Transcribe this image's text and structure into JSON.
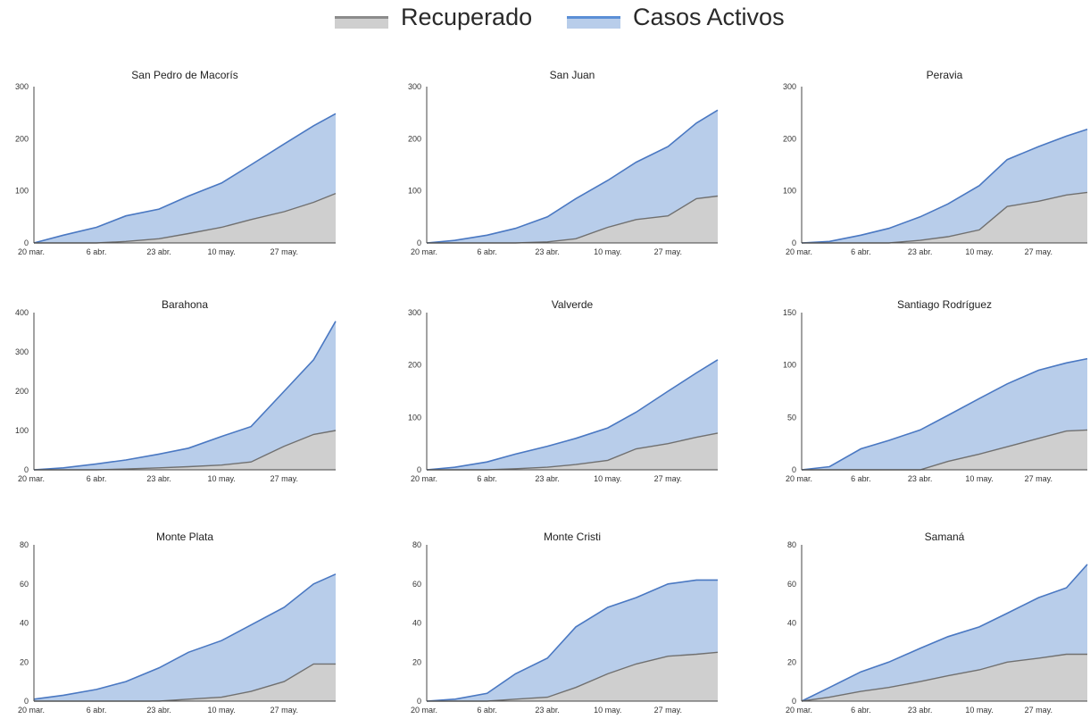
{
  "legend": [
    {
      "label": "Recuperado",
      "color": "#a9a9a9",
      "fill": "#cfcfcf"
    },
    {
      "label": "Casos Activos",
      "color": "#5b8fd6",
      "fill": "#b8cdea"
    }
  ],
  "x_ticks": [
    "20 mar.",
    "6 abr.",
    "23 abr.",
    "10 may.",
    "27 may."
  ],
  "x_tick_pos": [
    0,
    17,
    34,
    51,
    68
  ],
  "x_max": 82,
  "colors": {
    "recovered_fill": "#cfcfcf",
    "recovered_line": "#707070",
    "active_fill": "#b8cdea",
    "active_line": "#4a78c2",
    "axis": "#444444"
  },
  "chart_data": [
    {
      "type": "area",
      "title": "San Pedro de Macorís",
      "ylim": [
        0,
        300
      ],
      "yticks": [
        0,
        100,
        200,
        300
      ],
      "x": [
        0,
        8,
        17,
        25,
        34,
        42,
        51,
        59,
        68,
        76,
        82
      ],
      "series": [
        {
          "name": "Recuperado",
          "values": [
            0,
            0,
            0,
            3,
            8,
            18,
            30,
            45,
            60,
            78,
            95
          ]
        },
        {
          "name": "Casos Activos",
          "values": [
            0,
            15,
            30,
            52,
            65,
            90,
            115,
            150,
            190,
            225,
            248
          ]
        }
      ]
    },
    {
      "type": "area",
      "title": "San Juan",
      "ylim": [
        0,
        300
      ],
      "yticks": [
        0,
        100,
        200,
        300
      ],
      "x": [
        0,
        8,
        17,
        25,
        34,
        42,
        51,
        59,
        68,
        76,
        82
      ],
      "series": [
        {
          "name": "Recuperado",
          "values": [
            0,
            0,
            0,
            0,
            2,
            8,
            30,
            45,
            52,
            85,
            90
          ]
        },
        {
          "name": "Casos Activos",
          "values": [
            0,
            5,
            15,
            28,
            50,
            85,
            120,
            155,
            185,
            230,
            255
          ]
        }
      ]
    },
    {
      "type": "area",
      "title": "Peravia",
      "ylim": [
        0,
        300
      ],
      "yticks": [
        0,
        100,
        200,
        300
      ],
      "x": [
        0,
        8,
        17,
        25,
        34,
        42,
        51,
        59,
        68,
        76,
        82
      ],
      "series": [
        {
          "name": "Recuperado",
          "values": [
            0,
            0,
            0,
            0,
            5,
            12,
            25,
            70,
            80,
            92,
            97
          ]
        },
        {
          "name": "Casos Activos",
          "values": [
            0,
            3,
            15,
            28,
            50,
            75,
            110,
            160,
            185,
            205,
            218
          ]
        }
      ]
    },
    {
      "type": "area",
      "title": "Barahona",
      "ylim": [
        0,
        400
      ],
      "yticks": [
        0,
        100,
        200,
        300,
        400
      ],
      "x": [
        0,
        8,
        17,
        25,
        34,
        42,
        51,
        59,
        68,
        76,
        82
      ],
      "series": [
        {
          "name": "Recuperado",
          "values": [
            0,
            0,
            0,
            2,
            5,
            8,
            12,
            20,
            60,
            90,
            100
          ]
        },
        {
          "name": "Casos Activos",
          "values": [
            0,
            5,
            15,
            25,
            40,
            55,
            85,
            110,
            200,
            280,
            378
          ]
        }
      ]
    },
    {
      "type": "area",
      "title": "Valverde",
      "ylim": [
        0,
        300
      ],
      "yticks": [
        0,
        100,
        200,
        300
      ],
      "x": [
        0,
        8,
        17,
        25,
        34,
        42,
        51,
        59,
        68,
        76,
        82
      ],
      "series": [
        {
          "name": "Recuperado",
          "values": [
            0,
            0,
            0,
            2,
            5,
            10,
            18,
            40,
            50,
            62,
            70
          ]
        },
        {
          "name": "Casos Activos",
          "values": [
            0,
            5,
            15,
            30,
            45,
            60,
            80,
            110,
            150,
            185,
            210
          ]
        }
      ]
    },
    {
      "type": "area",
      "title": "Santiago Rodríguez",
      "ylim": [
        0,
        150
      ],
      "yticks": [
        0,
        50,
        100,
        150
      ],
      "x": [
        0,
        8,
        17,
        25,
        34,
        42,
        51,
        59,
        68,
        76,
        82
      ],
      "series": [
        {
          "name": "Recuperado",
          "values": [
            0,
            0,
            0,
            0,
            0,
            8,
            15,
            22,
            30,
            37,
            38
          ]
        },
        {
          "name": "Casos Activos",
          "values": [
            0,
            3,
            20,
            28,
            38,
            52,
            68,
            82,
            95,
            102,
            106
          ]
        }
      ]
    },
    {
      "type": "area",
      "title": "Monte Plata",
      "ylim": [
        0,
        80
      ],
      "yticks": [
        0,
        20,
        40,
        60,
        80
      ],
      "x": [
        0,
        8,
        17,
        25,
        34,
        42,
        51,
        59,
        68,
        76,
        82
      ],
      "series": [
        {
          "name": "Recuperado",
          "values": [
            0,
            0,
            0,
            0,
            0,
            1,
            2,
            5,
            10,
            19,
            19
          ]
        },
        {
          "name": "Casos Activos",
          "values": [
            1,
            3,
            6,
            10,
            17,
            25,
            31,
            39,
            48,
            60,
            65
          ]
        }
      ]
    },
    {
      "type": "area",
      "title": "Monte Cristi",
      "ylim": [
        0,
        80
      ],
      "yticks": [
        0,
        20,
        40,
        60,
        80
      ],
      "x": [
        0,
        8,
        17,
        25,
        34,
        42,
        51,
        59,
        68,
        76,
        82
      ],
      "series": [
        {
          "name": "Recuperado",
          "values": [
            0,
            0,
            0,
            1,
            2,
            7,
            14,
            19,
            23,
            24,
            25
          ]
        },
        {
          "name": "Casos Activos",
          "values": [
            0,
            1,
            4,
            14,
            22,
            38,
            48,
            53,
            60,
            62,
            62
          ]
        }
      ]
    },
    {
      "type": "area",
      "title": "Samaná",
      "ylim": [
        0,
        80
      ],
      "yticks": [
        0,
        20,
        40,
        60,
        80
      ],
      "x": [
        0,
        8,
        17,
        25,
        34,
        42,
        51,
        59,
        68,
        76,
        82
      ],
      "series": [
        {
          "name": "Recuperado",
          "values": [
            0,
            2,
            5,
            7,
            10,
            13,
            16,
            20,
            22,
            24,
            24
          ]
        },
        {
          "name": "Casos Activos",
          "values": [
            0,
            7,
            15,
            20,
            27,
            33,
            38,
            45,
            53,
            58,
            70
          ]
        }
      ]
    }
  ]
}
